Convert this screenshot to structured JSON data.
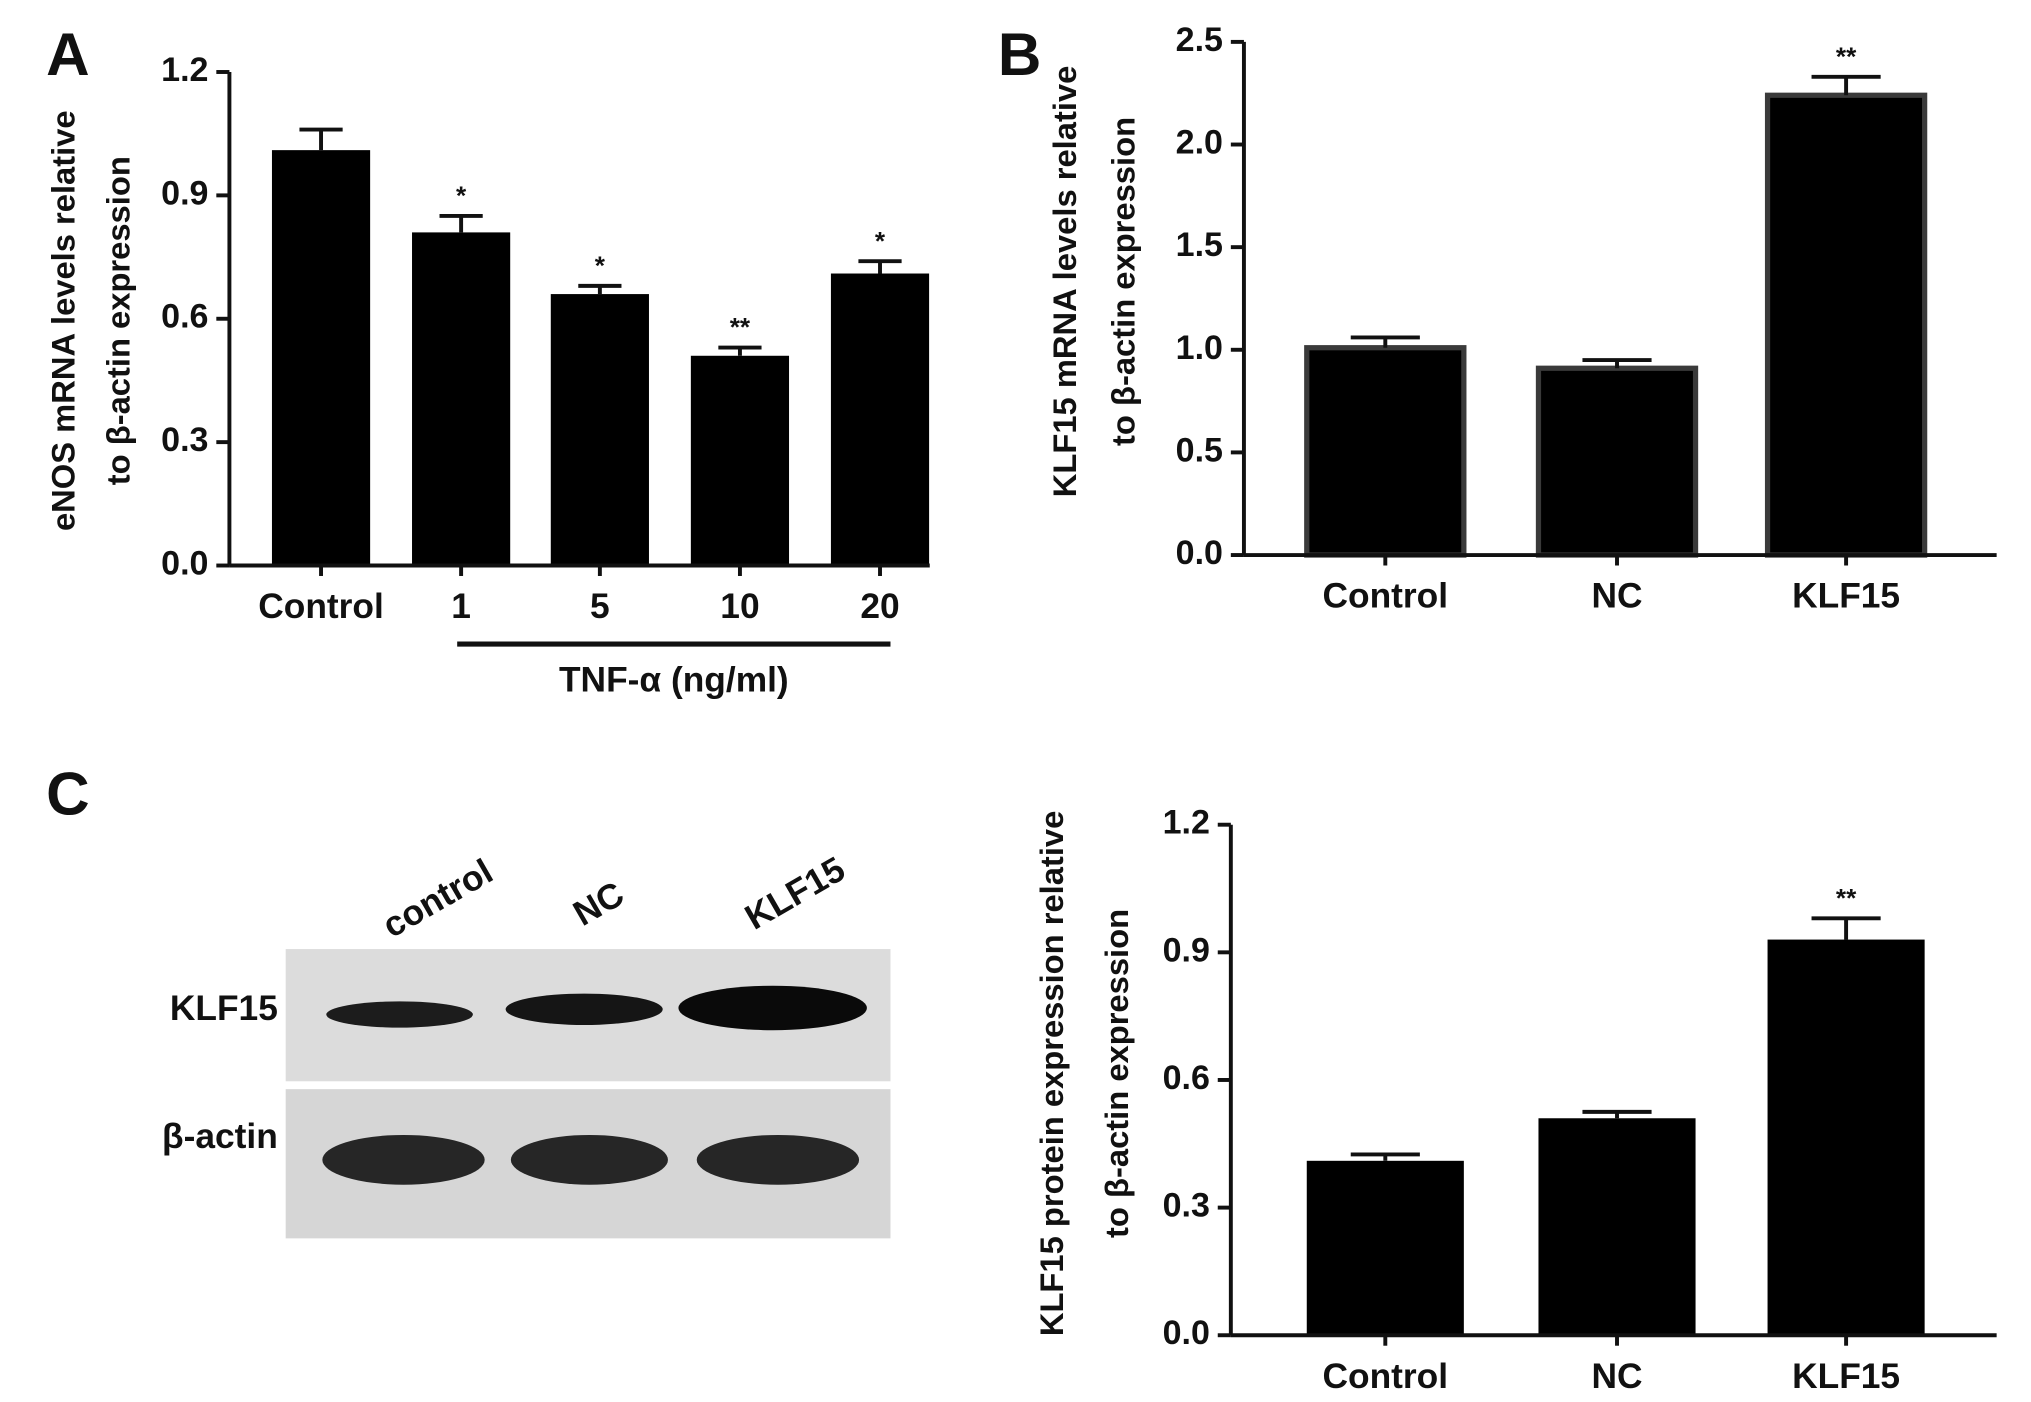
{
  "chart_data": [
    {
      "type": "bar",
      "panel_label": "A",
      "ylabel": [
        "eNOS mRNA levels relative",
        "to β-actin expression"
      ],
      "xlabel": "TNF-α (ng/ml)",
      "categories": [
        "Control",
        "1",
        "5",
        "10",
        "20"
      ],
      "values": [
        1.01,
        0.81,
        0.66,
        0.51,
        0.71
      ],
      "errors": [
        0.05,
        0.04,
        0.02,
        0.02,
        0.03
      ],
      "significance": [
        null,
        "*",
        "*",
        "**",
        "*"
      ],
      "color": "#000000",
      "ylim": [
        0,
        1.2
      ],
      "yticks": [
        {
          "value": 0,
          "label": "0.0"
        },
        0.3,
        0.6,
        0.9,
        1.2
      ]
    },
    {
      "type": "bar",
      "panel_label": "B",
      "ylabel": [
        "KLF15 mRNA levels relative",
        "to β-actin expression"
      ],
      "categories": [
        "Control",
        "NC",
        "KLF15"
      ],
      "values": [
        1.01,
        0.91,
        2.24
      ],
      "errors": [
        0.05,
        0.04,
        0.09
      ],
      "significance": [
        null,
        null,
        "**"
      ],
      "color": "#000000",
      "edgecolor": "#3a3a3a",
      "ylim": [
        0,
        2.5
      ],
      "yticks": [
        {
          "value": 0,
          "label": "0.0"
        },
        0.5,
        {
          "value": 1,
          "label": "1.0"
        },
        1.5,
        {
          "value": 2,
          "label": "2.0"
        },
        2.5
      ]
    },
    {
      "type": "bar",
      "panel_label": "C",
      "ylabel": [
        "KLF15 protein expression relative",
        "to β-actin expression"
      ],
      "categories": [
        "Control",
        "NC",
        "KLF15"
      ],
      "values": [
        0.41,
        0.51,
        0.93
      ],
      "errors": [
        0.015,
        0.015,
        0.05
      ],
      "significance": [
        null,
        null,
        "**"
      ],
      "color": "#000000",
      "ylim": [
        0,
        1.2
      ],
      "yticks": [
        {
          "value": 0,
          "label": "0.0"
        },
        0.3,
        0.6,
        0.9,
        1.2
      ]
    }
  ],
  "blot": {
    "lanes": [
      "control",
      "NC",
      "KLF15"
    ],
    "rows": [
      "KLF15",
      "β-actin"
    ]
  }
}
